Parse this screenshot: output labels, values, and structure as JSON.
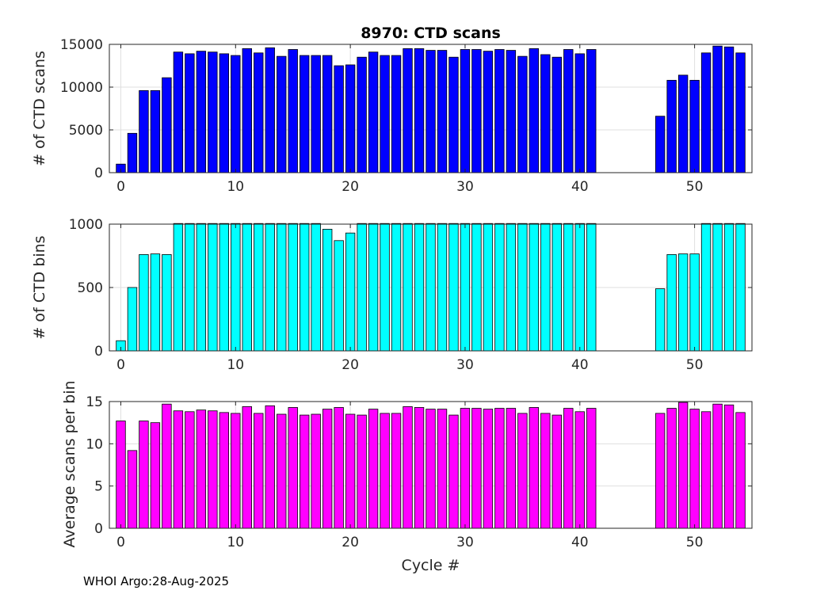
{
  "footer": "WHOI Argo:28-Aug-2025",
  "chart_data": [
    {
      "type": "bar",
      "title": "8970: CTD scans",
      "xlabel": "",
      "ylabel": "# of CTD scans",
      "color": "#0000FF",
      "xlim": [
        -1,
        55
      ],
      "ylim": [
        0,
        15000
      ],
      "xticks": [
        0,
        10,
        20,
        30,
        40,
        50
      ],
      "yticks": [
        0,
        5000,
        10000,
        15000
      ],
      "x": [
        0,
        1,
        2,
        3,
        4,
        5,
        6,
        7,
        8,
        9,
        10,
        11,
        12,
        13,
        14,
        15,
        16,
        17,
        18,
        19,
        20,
        21,
        22,
        23,
        24,
        25,
        26,
        27,
        28,
        29,
        30,
        31,
        32,
        33,
        34,
        35,
        36,
        37,
        38,
        39,
        40,
        41,
        47,
        48,
        49,
        50,
        51,
        52,
        53,
        54
      ],
      "values": [
        1000,
        4600,
        9600,
        9600,
        11100,
        14100,
        13900,
        14200,
        14100,
        13900,
        13700,
        14500,
        14000,
        14600,
        13600,
        14400,
        13700,
        13700,
        13700,
        12500,
        12600,
        13500,
        14100,
        13700,
        13700,
        14500,
        14500,
        14300,
        14300,
        13500,
        14400,
        14400,
        14200,
        14400,
        14300,
        13600,
        14500,
        13800,
        13500,
        14400,
        13900,
        14400,
        6600,
        10800,
        11400,
        10800,
        14000,
        14800,
        14700,
        14000
      ]
    },
    {
      "type": "bar",
      "title": "",
      "xlabel": "",
      "ylabel": "# of CTD bins",
      "color": "#00FFFF",
      "xlim": [
        -1,
        55
      ],
      "ylim": [
        0,
        1000
      ],
      "xticks": [
        0,
        10,
        20,
        30,
        40,
        50
      ],
      "yticks": [
        0,
        500,
        1000
      ],
      "x": [
        0,
        1,
        2,
        3,
        4,
        5,
        6,
        7,
        8,
        9,
        10,
        11,
        12,
        13,
        14,
        15,
        16,
        17,
        18,
        19,
        20,
        21,
        22,
        23,
        24,
        25,
        26,
        27,
        28,
        29,
        30,
        31,
        32,
        33,
        34,
        35,
        36,
        37,
        38,
        39,
        40,
        41,
        47,
        48,
        49,
        50,
        51,
        52,
        53,
        54
      ],
      "values": [
        80,
        500,
        760,
        765,
        760,
        1005,
        1005,
        1005,
        1005,
        1005,
        1005,
        1005,
        1005,
        1005,
        1005,
        1005,
        1005,
        1005,
        960,
        870,
        930,
        1005,
        1005,
        1005,
        1005,
        1005,
        1005,
        1005,
        1005,
        1005,
        1005,
        1005,
        1005,
        1005,
        1005,
        1005,
        1005,
        1005,
        1005,
        1005,
        1005,
        1005,
        490,
        760,
        765,
        765,
        1005,
        1005,
        1005,
        1005
      ]
    },
    {
      "type": "bar",
      "title": "",
      "xlabel": "Cycle #",
      "ylabel": "Average scans per bin",
      "color": "#FF00FF",
      "xlim": [
        -1,
        55
      ],
      "ylim": [
        0,
        15
      ],
      "xticks": [
        0,
        10,
        20,
        30,
        40,
        50
      ],
      "yticks": [
        0,
        5,
        10,
        15
      ],
      "x": [
        0,
        1,
        2,
        3,
        4,
        5,
        6,
        7,
        8,
        9,
        10,
        11,
        12,
        13,
        14,
        15,
        16,
        17,
        18,
        19,
        20,
        21,
        22,
        23,
        24,
        25,
        26,
        27,
        28,
        29,
        30,
        31,
        32,
        33,
        34,
        35,
        36,
        37,
        38,
        39,
        40,
        41,
        47,
        48,
        49,
        50,
        51,
        52,
        53,
        54
      ],
      "values": [
        12.7,
        9.2,
        12.7,
        12.5,
        14.7,
        13.9,
        13.8,
        14.0,
        13.9,
        13.7,
        13.6,
        14.4,
        13.6,
        14.5,
        13.5,
        14.3,
        13.4,
        13.5,
        14.1,
        14.3,
        13.5,
        13.4,
        14.1,
        13.6,
        13.6,
        14.4,
        14.3,
        14.1,
        14.1,
        13.4,
        14.2,
        14.2,
        14.1,
        14.2,
        14.2,
        13.6,
        14.3,
        13.6,
        13.4,
        14.2,
        13.8,
        14.2,
        13.6,
        14.2,
        14.9,
        14.1,
        13.8,
        14.7,
        14.6,
        13.7
      ]
    }
  ]
}
